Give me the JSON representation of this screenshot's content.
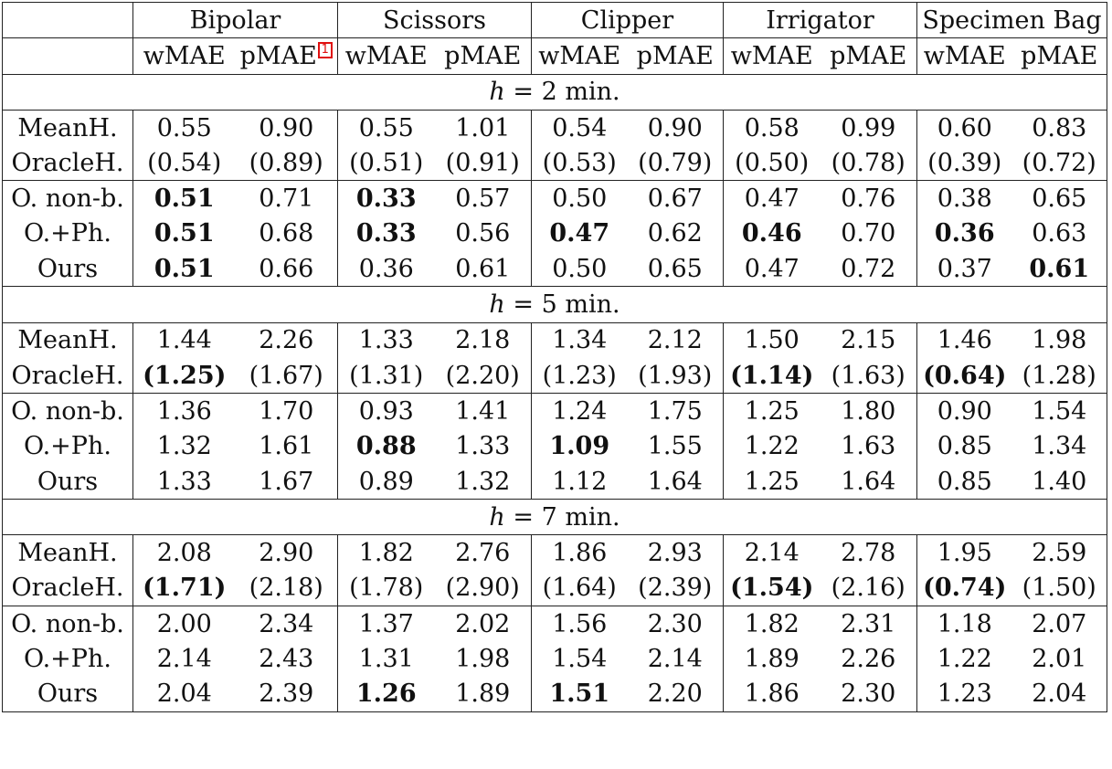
{
  "groups": [
    "Bipolar",
    "Scissors",
    "Clipper",
    "Irrigator",
    "Specimen Bag"
  ],
  "metrics": [
    "wMAE",
    "pMAE"
  ],
  "footnote_ref": "1",
  "sections": [
    {
      "h_var": "h",
      "h_rest": " = 2 min.",
      "rows": [
        {
          "method": "MeanH.",
          "cells": [
            {
              "v": "0.55"
            },
            {
              "v": "0.90"
            },
            {
              "v": "0.55"
            },
            {
              "v": "1.01"
            },
            {
              "v": "0.54"
            },
            {
              "v": "0.90"
            },
            {
              "v": "0.58"
            },
            {
              "v": "0.99"
            },
            {
              "v": "0.60"
            },
            {
              "v": "0.83"
            }
          ]
        },
        {
          "method": "OracleH.",
          "cells": [
            {
              "v": "(0.54)"
            },
            {
              "v": "(0.89)"
            },
            {
              "v": "(0.51)"
            },
            {
              "v": "(0.91)"
            },
            {
              "v": "(0.53)"
            },
            {
              "v": "(0.79)"
            },
            {
              "v": "(0.50)"
            },
            {
              "v": "(0.78)"
            },
            {
              "v": "(0.39)"
            },
            {
              "v": "(0.72)"
            }
          ]
        },
        {
          "method": "O. non-b.",
          "cells": [
            {
              "v": "0.51",
              "b": true
            },
            {
              "v": "0.71"
            },
            {
              "v": "0.33",
              "b": true
            },
            {
              "v": "0.57"
            },
            {
              "v": "0.50"
            },
            {
              "v": "0.67"
            },
            {
              "v": "0.47"
            },
            {
              "v": "0.76"
            },
            {
              "v": "0.38"
            },
            {
              "v": "0.65"
            }
          ]
        },
        {
          "method": "O.+Ph.",
          "cells": [
            {
              "v": "0.51",
              "b": true
            },
            {
              "v": "0.68"
            },
            {
              "v": "0.33",
              "b": true
            },
            {
              "v": "0.56"
            },
            {
              "v": "0.47",
              "b": true
            },
            {
              "v": "0.62"
            },
            {
              "v": "0.46",
              "b": true
            },
            {
              "v": "0.70"
            },
            {
              "v": "0.36",
              "b": true
            },
            {
              "v": "0.63"
            }
          ]
        },
        {
          "method": "Ours",
          "cells": [
            {
              "v": "0.51",
              "b": true
            },
            {
              "v": "0.66"
            },
            {
              "v": "0.36"
            },
            {
              "v": "0.61"
            },
            {
              "v": "0.50"
            },
            {
              "v": "0.65"
            },
            {
              "v": "0.47"
            },
            {
              "v": "0.72"
            },
            {
              "v": "0.37"
            },
            {
              "v": "0.61",
              "b": true
            }
          ]
        }
      ]
    },
    {
      "h_var": "h",
      "h_rest": " = 5 min.",
      "rows": [
        {
          "method": "MeanH.",
          "cells": [
            {
              "v": "1.44"
            },
            {
              "v": "2.26"
            },
            {
              "v": "1.33"
            },
            {
              "v": "2.18"
            },
            {
              "v": "1.34"
            },
            {
              "v": "2.12"
            },
            {
              "v": "1.50"
            },
            {
              "v": "2.15"
            },
            {
              "v": "1.46"
            },
            {
              "v": "1.98"
            }
          ]
        },
        {
          "method": "OracleH.",
          "cells": [
            {
              "v": "(1.25)",
              "b": true
            },
            {
              "v": "(1.67)"
            },
            {
              "v": "(1.31)"
            },
            {
              "v": "(2.20)"
            },
            {
              "v": "(1.23)"
            },
            {
              "v": "(1.93)"
            },
            {
              "v": "(1.14)",
              "b": true
            },
            {
              "v": "(1.63)"
            },
            {
              "v": "(0.64)",
              "b": true
            },
            {
              "v": "(1.28)"
            }
          ]
        },
        {
          "method": "O. non-b.",
          "cells": [
            {
              "v": "1.36"
            },
            {
              "v": "1.70"
            },
            {
              "v": "0.93"
            },
            {
              "v": "1.41"
            },
            {
              "v": "1.24"
            },
            {
              "v": "1.75"
            },
            {
              "v": "1.25"
            },
            {
              "v": "1.80"
            },
            {
              "v": "0.90"
            },
            {
              "v": "1.54"
            }
          ]
        },
        {
          "method": "O.+Ph.",
          "cells": [
            {
              "v": "1.32"
            },
            {
              "v": "1.61"
            },
            {
              "v": "0.88",
              "b": true
            },
            {
              "v": "1.33"
            },
            {
              "v": "1.09",
              "b": true
            },
            {
              "v": "1.55"
            },
            {
              "v": "1.22"
            },
            {
              "v": "1.63"
            },
            {
              "v": "0.85"
            },
            {
              "v": "1.34"
            }
          ]
        },
        {
          "method": "Ours",
          "cells": [
            {
              "v": "1.33"
            },
            {
              "v": "1.67"
            },
            {
              "v": "0.89"
            },
            {
              "v": "1.32"
            },
            {
              "v": "1.12"
            },
            {
              "v": "1.64"
            },
            {
              "v": "1.25"
            },
            {
              "v": "1.64"
            },
            {
              "v": "0.85"
            },
            {
              "v": "1.40"
            }
          ]
        }
      ]
    },
    {
      "h_var": "h",
      "h_rest": " = 7 min.",
      "rows": [
        {
          "method": "MeanH.",
          "cells": [
            {
              "v": "2.08"
            },
            {
              "v": "2.90"
            },
            {
              "v": "1.82"
            },
            {
              "v": "2.76"
            },
            {
              "v": "1.86"
            },
            {
              "v": "2.93"
            },
            {
              "v": "2.14"
            },
            {
              "v": "2.78"
            },
            {
              "v": "1.95"
            },
            {
              "v": "2.59"
            }
          ]
        },
        {
          "method": "OracleH.",
          "cells": [
            {
              "v": "(1.71)",
              "b": true
            },
            {
              "v": "(2.18)"
            },
            {
              "v": "(1.78)"
            },
            {
              "v": "(2.90)"
            },
            {
              "v": "(1.64)"
            },
            {
              "v": "(2.39)"
            },
            {
              "v": "(1.54)",
              "b": true
            },
            {
              "v": "(2.16)"
            },
            {
              "v": "(0.74)",
              "b": true
            },
            {
              "v": "(1.50)"
            }
          ]
        },
        {
          "method": "O. non-b.",
          "cells": [
            {
              "v": "2.00"
            },
            {
              "v": "2.34"
            },
            {
              "v": "1.37"
            },
            {
              "v": "2.02"
            },
            {
              "v": "1.56"
            },
            {
              "v": "2.30"
            },
            {
              "v": "1.82"
            },
            {
              "v": "2.31"
            },
            {
              "v": "1.18"
            },
            {
              "v": "2.07"
            }
          ]
        },
        {
          "method": "O.+Ph.",
          "cells": [
            {
              "v": "2.14"
            },
            {
              "v": "2.43"
            },
            {
              "v": "1.31"
            },
            {
              "v": "1.98"
            },
            {
              "v": "1.54"
            },
            {
              "v": "2.14"
            },
            {
              "v": "1.89"
            },
            {
              "v": "2.26"
            },
            {
              "v": "1.22"
            },
            {
              "v": "2.01"
            }
          ]
        },
        {
          "method": "Ours",
          "cells": [
            {
              "v": "2.04"
            },
            {
              "v": "2.39"
            },
            {
              "v": "1.26",
              "b": true
            },
            {
              "v": "1.89"
            },
            {
              "v": "1.51",
              "b": true
            },
            {
              "v": "2.20"
            },
            {
              "v": "1.86"
            },
            {
              "v": "2.30"
            },
            {
              "v": "1.23"
            },
            {
              "v": "2.04"
            }
          ]
        }
      ]
    }
  ]
}
